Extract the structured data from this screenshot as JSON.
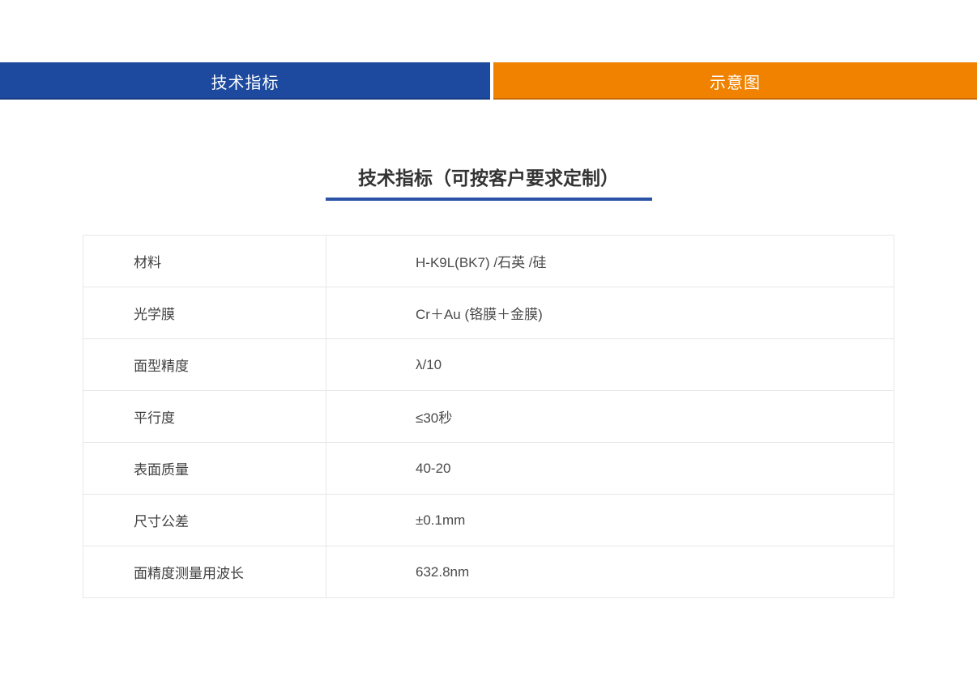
{
  "tabs": [
    {
      "label": "技术指标",
      "color": "#1d4a9e",
      "active": true
    },
    {
      "label": "示意图",
      "color": "#f08200",
      "active": false
    }
  ],
  "section": {
    "title": "技术指标（可按客户要求定制）",
    "underline_color": "#2a52a5"
  },
  "spec_table": {
    "rows": [
      {
        "label": "材料",
        "value": "H-K9L(BK7) /石英 /硅"
      },
      {
        "label": "光学膜",
        "value": "Cr＋Au (铬膜＋金膜)"
      },
      {
        "label": "面型精度",
        "value": "λ/10"
      },
      {
        "label": "平行度",
        "value": "≤30秒"
      },
      {
        "label": "表面质量",
        "value": "40-20"
      },
      {
        "label": "尺寸公差",
        "value": "±0.1mm"
      },
      {
        "label": "面精度测量用波长",
        "value": "632.8nm"
      }
    ]
  }
}
